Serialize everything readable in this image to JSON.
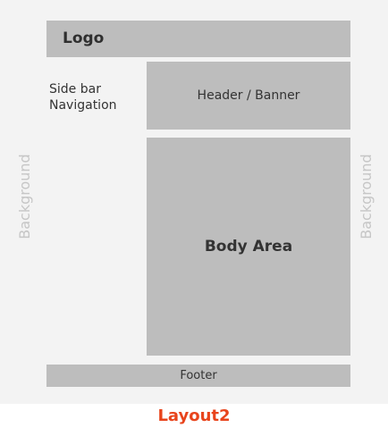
{
  "logo": {
    "label": "Logo"
  },
  "sidebar": {
    "line1": "Side bar",
    "line2": "Navigation"
  },
  "header": {
    "label": "Header / Banner"
  },
  "body": {
    "label": "Body Area"
  },
  "footer": {
    "label": "Footer"
  },
  "background": {
    "left_label": "Background",
    "right_label": "Background"
  },
  "caption": {
    "label": "Layout2"
  },
  "colors": {
    "block": "#bdbdbd",
    "background": "#f3f3f3",
    "caption": "#e8441c"
  }
}
